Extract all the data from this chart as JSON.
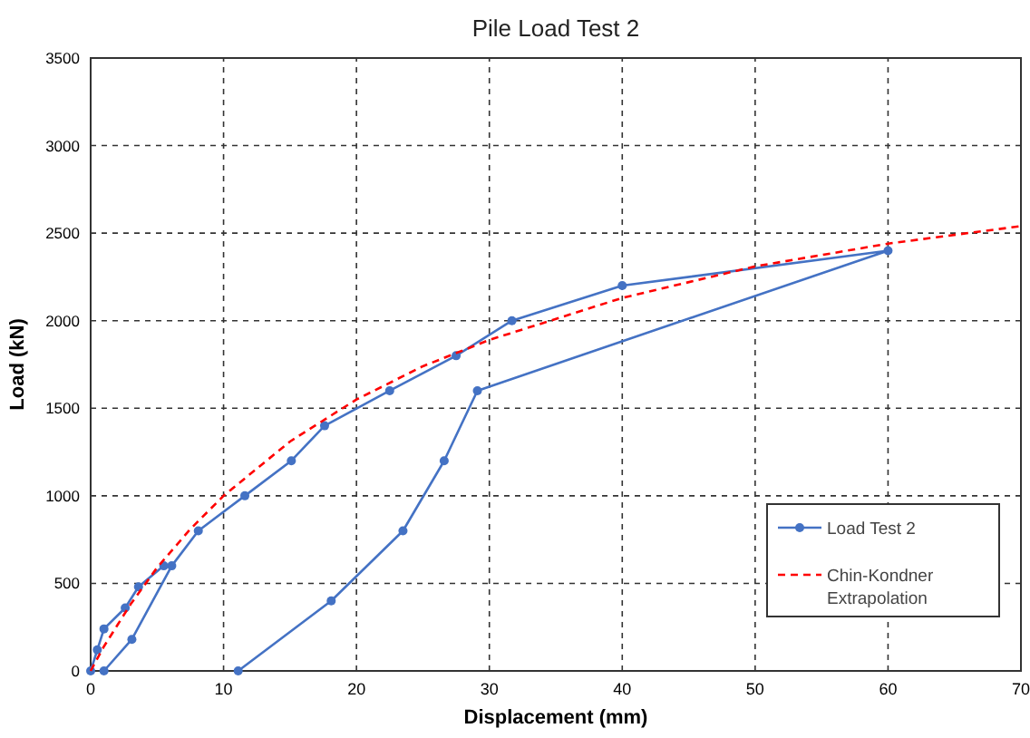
{
  "chart_data": {
    "type": "line",
    "title": "Pile Load Test 2",
    "xlabel": "Displacement (mm)",
    "ylabel": "Load (kN)",
    "xlim": [
      0,
      70
    ],
    "xticks": [
      0,
      10,
      20,
      30,
      40,
      50,
      60,
      70
    ],
    "ylim": [
      0,
      3500
    ],
    "yticks": [
      0,
      500,
      1000,
      1500,
      2000,
      2500,
      3000,
      3500
    ],
    "grid": true,
    "legend": "bottom right",
    "series": [
      {
        "name": "Load Test 2",
        "color": "#4472c4",
        "marker": "circle",
        "line_style": "solid",
        "x": [
          1,
          3.1,
          6.1,
          8.1,
          11.6,
          15.1,
          17.6,
          22.5,
          27.5,
          31.7,
          40,
          60,
          29.1,
          26.6,
          23.5,
          18.1,
          11.1,
          5.5,
          0,
          0.5,
          1,
          2.6,
          3.6,
          5.5
        ],
        "values": [
          0,
          180,
          600,
          800,
          1000,
          1200,
          1400,
          1600,
          1800,
          2000,
          2200,
          2400,
          1600,
          1200,
          800,
          400,
          0,
          null,
          0,
          120,
          240,
          360,
          480,
          600
        ]
      },
      {
        "name": "Chin-Kondner Extrapolation",
        "color": "#ff0000",
        "marker": "none",
        "line_style": "dashed",
        "x": [
          0,
          1,
          2,
          3,
          5,
          7.5,
          10,
          15,
          20,
          25,
          30,
          40,
          50,
          60,
          70
        ],
        "values": [
          0,
          140,
          260,
          380,
          590,
          810,
          1000,
          1310,
          1550,
          1740,
          1890,
          2130,
          2310,
          2440,
          2540
        ]
      }
    ]
  }
}
